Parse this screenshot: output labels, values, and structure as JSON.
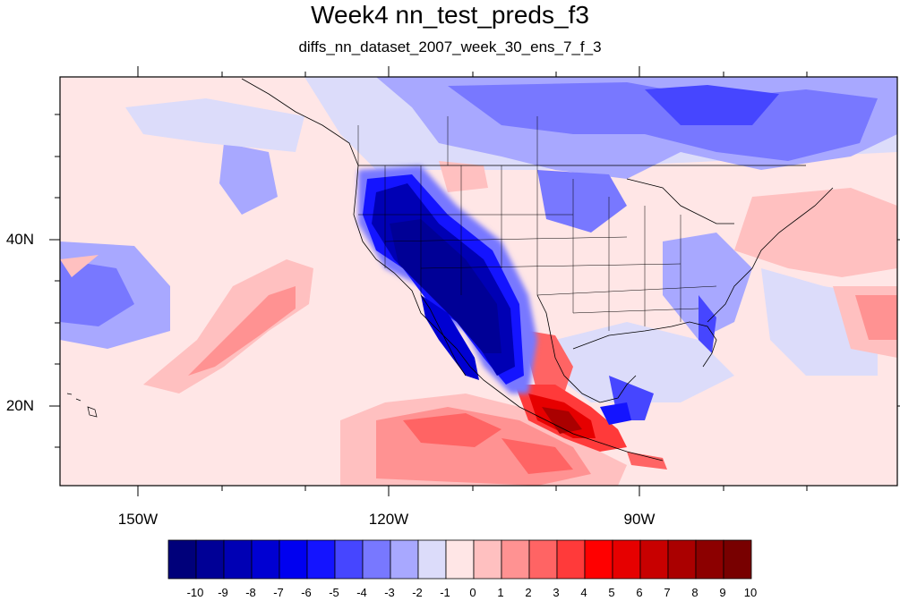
{
  "title": "Week4 nn_test_preds_f3",
  "subtitle": "diffs_nn_dataset_2007_week_30_ens_7_f_3",
  "map": {
    "projection": "cylindrical equidistant",
    "lat_labels": [
      "40N",
      "20N"
    ],
    "lon_labels": [
      "150W",
      "120W",
      "90W"
    ],
    "features": [
      "coastlines",
      "US state boundaries",
      "Canada province boundaries",
      "Great Lakes"
    ],
    "field_summary": [
      {
        "region": "US Southwest / Baja California",
        "value": -10
      },
      {
        "region": "Pacific Northwest",
        "value": -7
      },
      {
        "region": "Southern Mexico",
        "value": 9
      },
      {
        "region": "Eastern Pacific south of 20N",
        "value": 5
      },
      {
        "region": "Subtropical Pacific band",
        "value": 3
      },
      {
        "region": "Canada",
        "value": -4
      },
      {
        "region": "Western Atlantic",
        "value": 2
      }
    ]
  },
  "colorbar": {
    "labels": [
      "-10",
      "-9",
      "-8",
      "-7",
      "-6",
      "-5",
      "-4",
      "-3",
      "-2",
      "-1",
      "0",
      "1",
      "2",
      "3",
      "4",
      "5",
      "6",
      "7",
      "8",
      "9",
      "10"
    ],
    "colors": [
      "#00007a",
      "#000096",
      "#0000b4",
      "#0000d2",
      "#0000f0",
      "#1414ff",
      "#4646ff",
      "#7878ff",
      "#a8a8ff",
      "#dcdcfa",
      "#ffe6e6",
      "#ffc0c0",
      "#ff9292",
      "#ff6464",
      "#ff3a3a",
      "#ff0000",
      "#e60000",
      "#c80000",
      "#aa0000",
      "#8c0000",
      "#780000"
    ]
  }
}
